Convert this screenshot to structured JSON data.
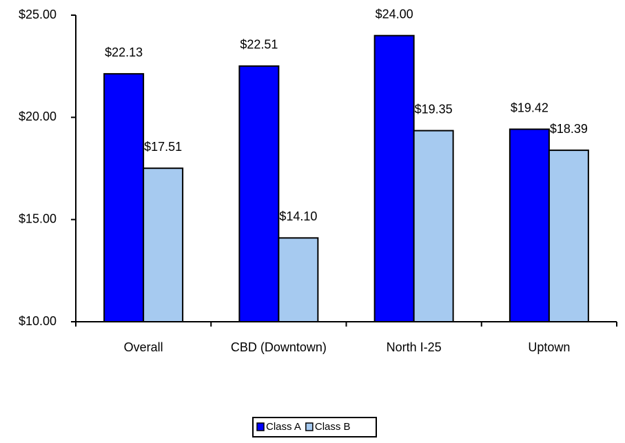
{
  "chart_data": {
    "type": "bar",
    "categories": [
      "Overall",
      "CBD (Downtown)",
      "North I-25",
      "Uptown"
    ],
    "series": [
      {
        "name": "Class A",
        "color": "#0000ff",
        "values": [
          22.13,
          22.51,
          24.0,
          19.42
        ],
        "value_labels": [
          "$22.13",
          "$22.51",
          "$24.00",
          "$19.42"
        ]
      },
      {
        "name": "Class B",
        "color": "#a6caf0",
        "values": [
          17.51,
          14.1,
          19.35,
          18.39
        ],
        "value_labels": [
          "$17.51",
          "$14.10",
          "$19.35",
          "$18.39"
        ]
      }
    ],
    "ylim": [
      10,
      25
    ],
    "yticks": [
      {
        "value": 10,
        "label": "$10.00"
      },
      {
        "value": 15,
        "label": "$15.00"
      },
      {
        "value": 20,
        "label": "$20.00"
      },
      {
        "value": 25,
        "label": "$25.00"
      }
    ],
    "grid": false,
    "legend": "bottom"
  }
}
